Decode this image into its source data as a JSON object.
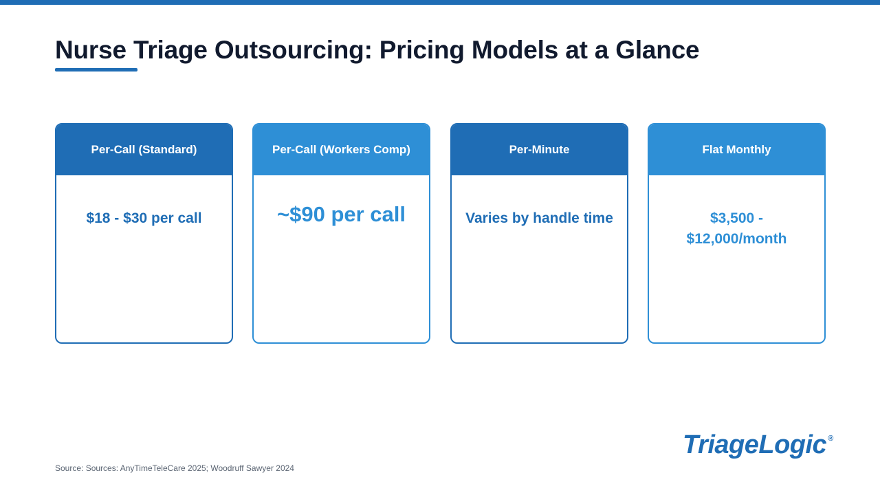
{
  "slide": {
    "title": "Nurse Triage Outsourcing: Pricing Models at a Glance",
    "source": "Source: Sources: AnyTimeTeleCare 2025; Woodruff Sawyer 2024"
  },
  "cards": [
    {
      "header": "Per-Call (Standard)",
      "value": "$18 - $30 per call"
    },
    {
      "header": "Per-Call (Workers Comp)",
      "value": "~$90 per call"
    },
    {
      "header": "Per-Minute",
      "value": "Varies by handle time"
    },
    {
      "header": "Flat Monthly",
      "value": "$3,500 - $12,000/month"
    }
  ],
  "logo": {
    "text": "TriageLogic",
    "mark": "®"
  },
  "colors": {
    "primary": "#1f6db5",
    "secondary": "#2e8fd6",
    "title": "#111a2e"
  }
}
